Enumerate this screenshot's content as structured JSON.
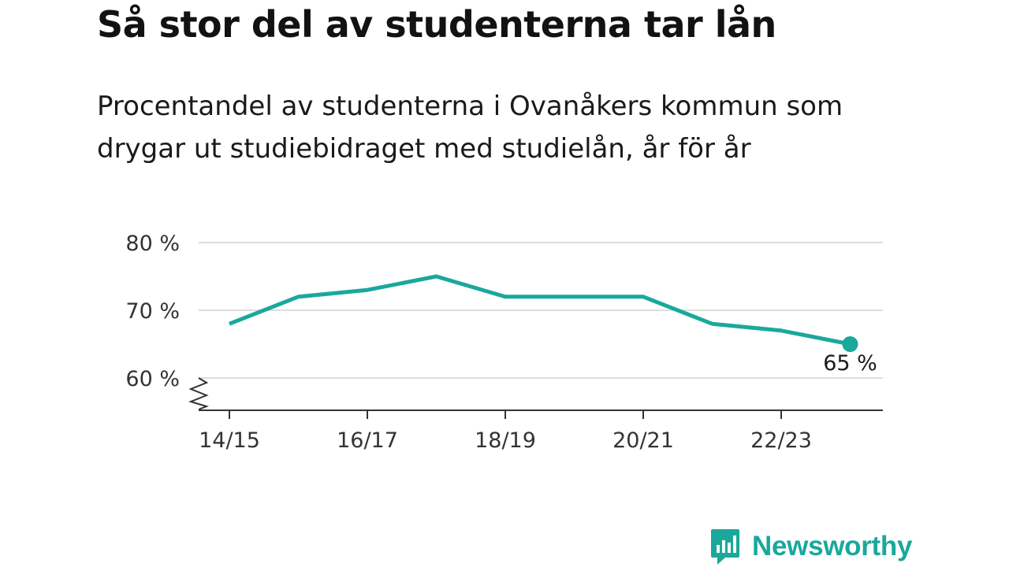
{
  "title": "Så stor del av studenterna tar lån",
  "subtitle": "Procentandel av studenterna i Ovanåkers kommun som drygar ut studiebidraget med studielån, år för år",
  "brand": "Newsworthy",
  "colors": {
    "line": "#1aa89c",
    "grid": "#dddddd",
    "axis": "#333333",
    "brand": "#1aa89c"
  },
  "chart_data": {
    "type": "line",
    "title": "Så stor del av studenterna tar lån",
    "subtitle": "Procentandel av studenterna i Ovanåkers kommun som drygar ut studiebidraget med studielån, år för år",
    "x": [
      "14/15",
      "15/16",
      "16/17",
      "17/18",
      "18/19",
      "19/20",
      "20/21",
      "21/22",
      "22/23",
      "23/24"
    ],
    "values": [
      68,
      72,
      73,
      75,
      72,
      72,
      72,
      68,
      67,
      65
    ],
    "ylim": [
      60,
      80
    ],
    "yticks": [
      60,
      70,
      80
    ],
    "ytick_labels": [
      "60 %",
      "70 %",
      "80 %"
    ],
    "xtick_labels": [
      "14/15",
      "16/17",
      "18/19",
      "20/21",
      "22/23"
    ],
    "last_point_label": "65 %",
    "grid": true,
    "axis_break": true
  }
}
